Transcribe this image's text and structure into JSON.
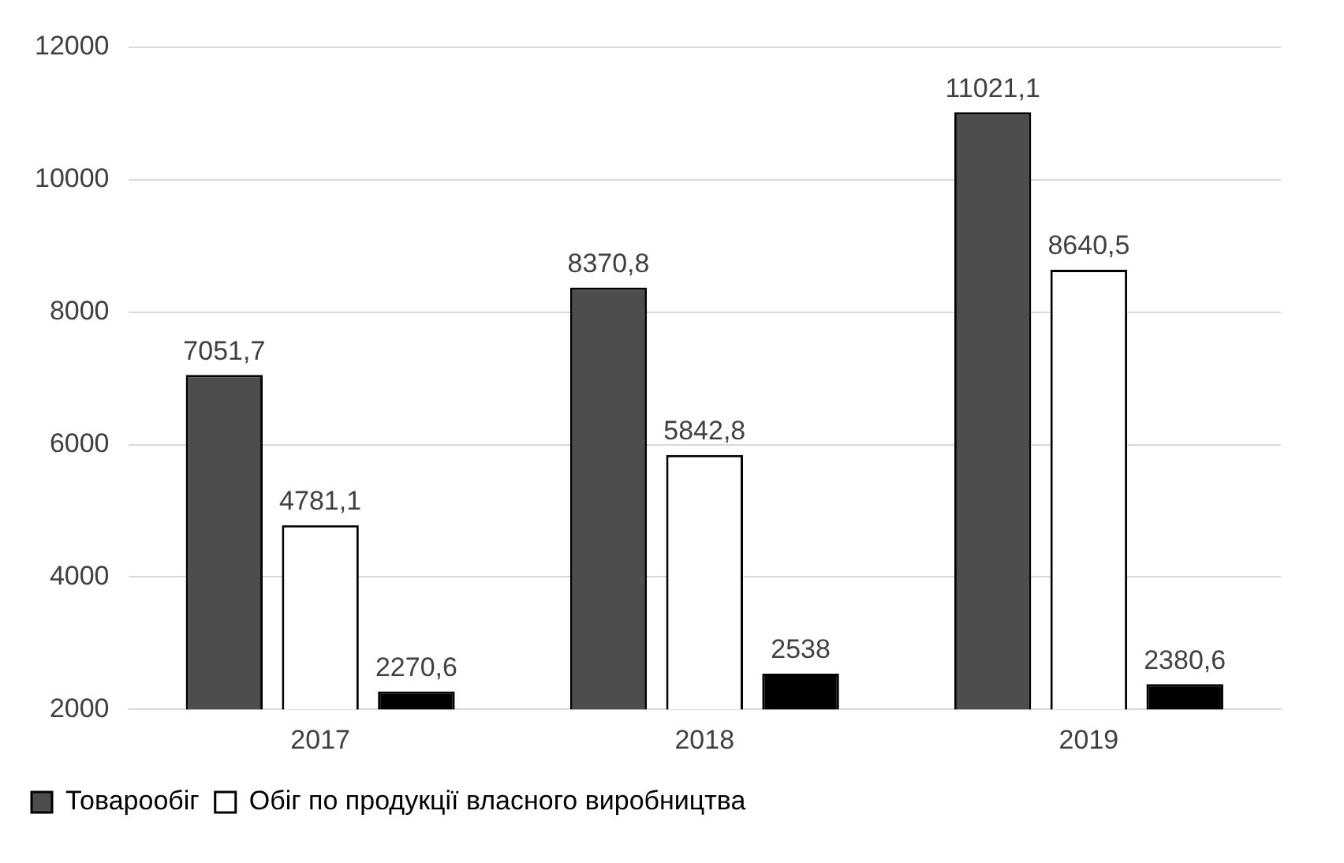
{
  "chart_data": {
    "type": "bar",
    "categories": [
      "2017",
      "2018",
      "2019"
    ],
    "series": [
      {
        "name": "Товарообіг",
        "color": "#4d4d4d",
        "values": [
          7051.7,
          8370.8,
          11021.1
        ],
        "value_labels": [
          "7051,7",
          "8370,8",
          "11021,1"
        ]
      },
      {
        "name": "Обіг по продукції власного виробництва",
        "color": "#ffffff",
        "values": [
          4781.1,
          5842.8,
          8640.5
        ],
        "value_labels": [
          "4781,1",
          "5842,8",
          "8640,5"
        ]
      },
      {
        "color": "#000000",
        "values": [
          2270.6,
          2538,
          2380.6
        ],
        "value_labels": [
          "2270,6",
          "2538",
          "2380,6"
        ]
      }
    ],
    "ylim": [
      2000,
      12000
    ],
    "yticks": [
      2000,
      4000,
      6000,
      8000,
      10000,
      12000
    ],
    "grid": "y",
    "legend": "bottom"
  }
}
